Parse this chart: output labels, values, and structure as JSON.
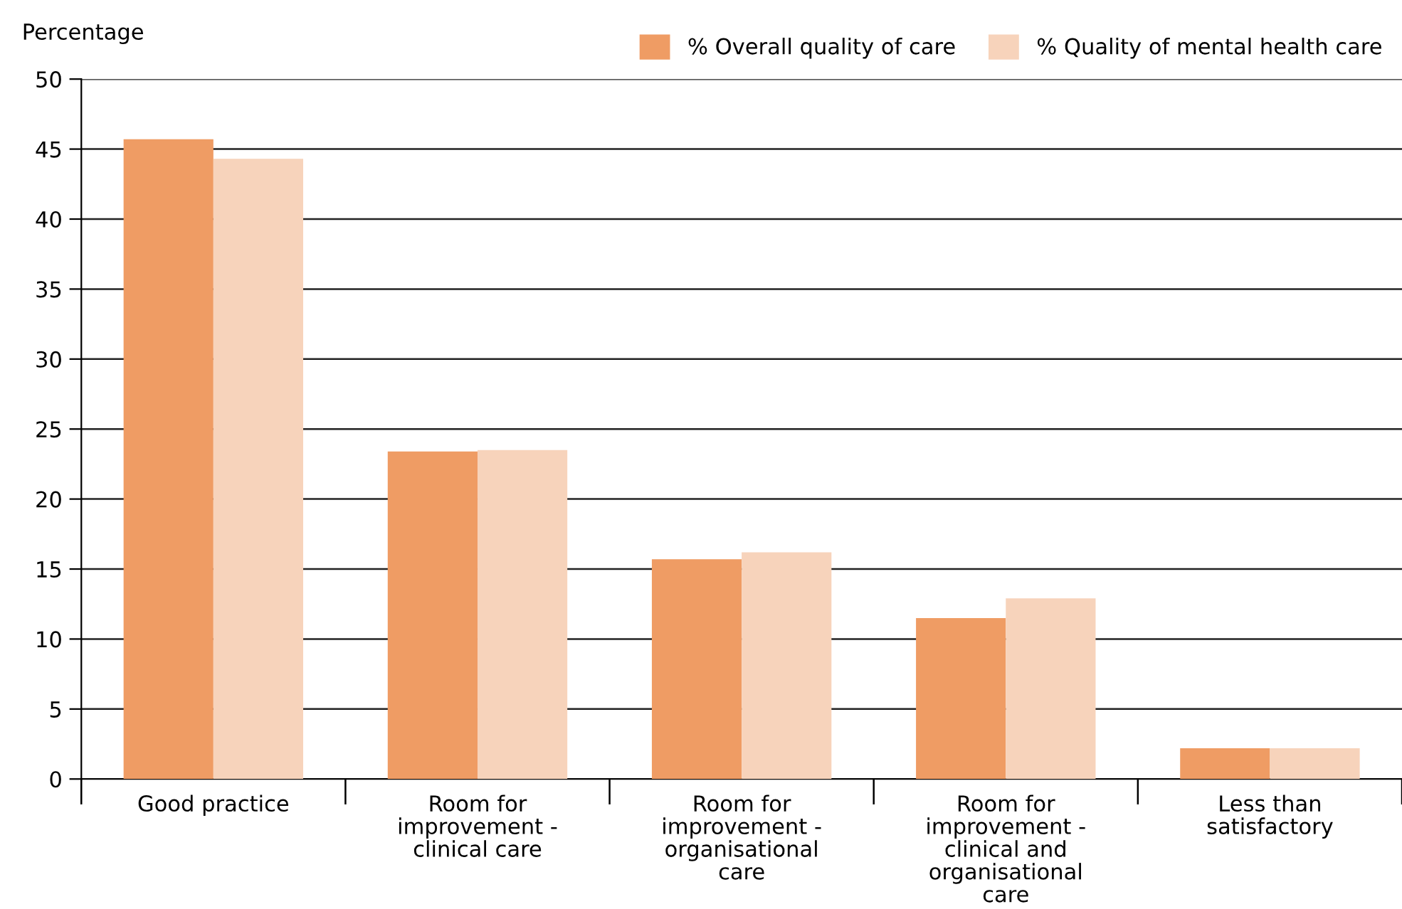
{
  "chart_data": {
    "type": "bar",
    "ylabel": "Percentage",
    "categories": [
      "Good practice",
      "Room for improvement - clinical care",
      "Room for improvement - organisational care",
      "Room for improvement - clinical and organisational care",
      "Less than satisfactory"
    ],
    "series": [
      {
        "name": "% Overall quality of care",
        "color": "#ef9c64",
        "values": [
          45.7,
          23.4,
          15.7,
          11.5,
          2.2
        ]
      },
      {
        "name": "% Quality of mental health care",
        "color": "#f7d3bb",
        "values": [
          44.3,
          23.5,
          16.2,
          12.9,
          2.2
        ]
      }
    ],
    "ylim": [
      0,
      50
    ],
    "yticks": [
      0,
      5,
      10,
      15,
      20,
      25,
      30,
      35,
      40,
      45,
      50
    ],
    "grid": "y",
    "legend": "top right"
  }
}
